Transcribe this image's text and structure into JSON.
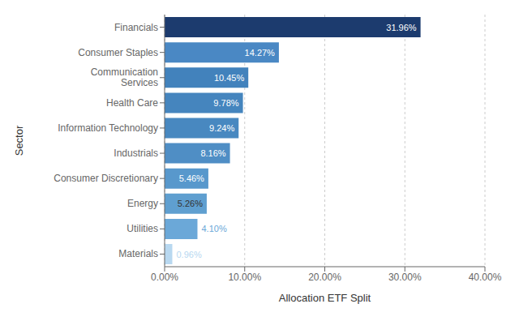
{
  "chart_data": {
    "type": "bar",
    "orientation": "horizontal",
    "categories": [
      "Materials",
      "Utilities",
      "Energy",
      "Consumer Discretionary",
      "Industrials",
      "Information Technology",
      "Health Care",
      "Communication\nServices",
      "Consumer Staples",
      "Financials"
    ],
    "values": [
      0.96,
      4.1,
      5.26,
      5.46,
      8.16,
      9.24,
      9.78,
      10.45,
      14.27,
      31.96
    ],
    "value_labels": [
      "0.96%",
      "4.10%",
      "5.26%",
      "5.46%",
      "8.16%",
      "9.24%",
      "9.78%",
      "10.45%",
      "14.27%",
      "31.96%"
    ],
    "data_labels": true,
    "colors": [
      "#b8d8f0",
      "#6ba8d8",
      "#5f9fd0",
      "#5898cc",
      "#4f8ec5",
      "#4888c0",
      "#4585be",
      "#4282bc",
      "#4a88c4",
      "#1c3b6e"
    ],
    "xlabel": "Allocation ETF Split",
    "ylabel": "Sector",
    "xlim": [
      0,
      40
    ],
    "xticks": [
      {
        "value": 0,
        "label": "0.00%"
      },
      {
        "value": 10,
        "label": "10.00%"
      },
      {
        "value": 20,
        "label": "20.00%"
      },
      {
        "value": 30,
        "label": "30.00%"
      },
      {
        "value": 40,
        "label": "40.00%"
      }
    ],
    "grid": true
  }
}
